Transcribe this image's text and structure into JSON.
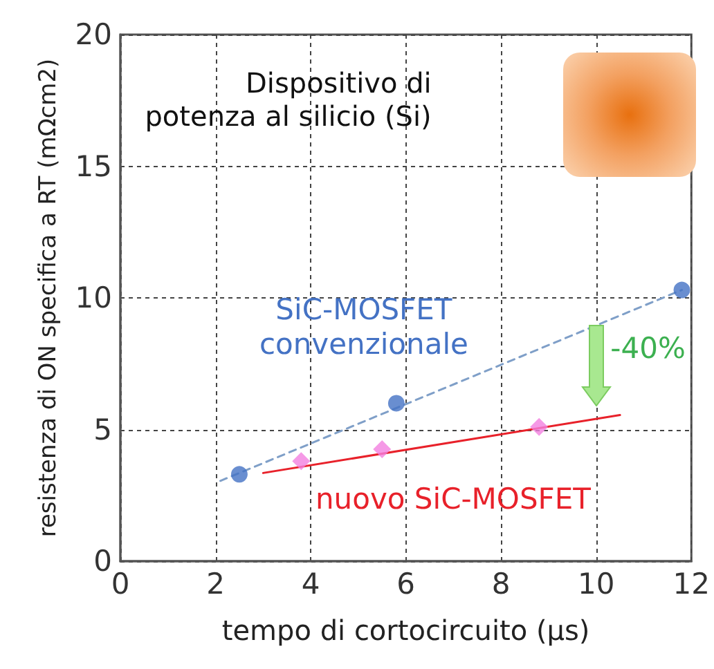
{
  "chart_data": {
    "type": "scatter",
    "xlabel": "tempo di cortocircuito (µs)",
    "ylabel": "resistenza di ON specifica a RT (mΩcm2)",
    "xlim": [
      0,
      12
    ],
    "xticks": [
      0,
      2,
      4,
      6,
      8,
      10,
      12
    ],
    "ylim": [
      0,
      20
    ],
    "yticks": [
      0,
      5,
      10,
      15,
      20
    ],
    "grid": true,
    "legend": false,
    "annotations": [
      "Dispositivo di potenza al silicio (Si)",
      "-40%"
    ],
    "series": [
      {
        "name": "SiC-MOSFET convenzionale",
        "marker": "circle",
        "color": "#4472c4",
        "x": [
          2.5,
          5.8,
          11.8
        ],
        "values": [
          3.3,
          6.0,
          10.3
        ]
      },
      {
        "type": "line",
        "marker": "none",
        "line_style": "dashed",
        "color": "#7f9fc8",
        "x": [
          2.1,
          11.8
        ],
        "values": [
          3.05,
          10.3
        ]
      },
      {
        "marker": "diamond",
        "color": "#f27fe0",
        "x": [
          3.8,
          5.5,
          8.8
        ],
        "values": [
          3.8,
          4.25,
          5.1
        ]
      },
      {
        "name": "nuovo SiC-MOSFET",
        "type": "line",
        "marker": "none",
        "line_style": "solid",
        "color": "#e8212a",
        "x": [
          3.0,
          10.5
        ],
        "values": [
          3.35,
          5.55
        ]
      }
    ]
  }
}
